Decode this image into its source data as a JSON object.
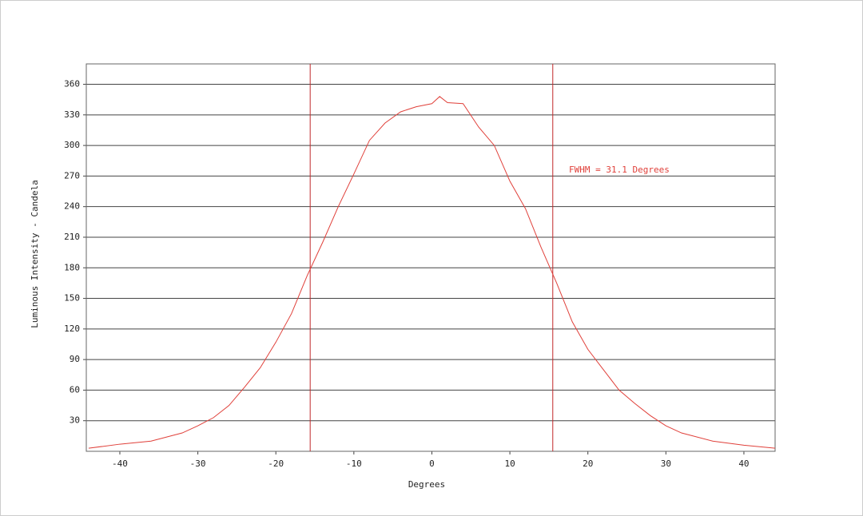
{
  "chart_data": {
    "type": "line",
    "x_label": "Degrees",
    "y_label": "Luminous Intensity - Candela",
    "annotation": "FWHM = 31.1 Degrees",
    "x": [
      -44,
      -40,
      -36,
      -32,
      -30,
      -28,
      -26,
      -24,
      -22,
      -20,
      -18,
      -16,
      -14,
      -12,
      -10,
      -8,
      -6,
      -4,
      -2,
      0,
      1,
      2,
      4,
      6,
      8,
      10,
      12,
      14,
      16,
      18,
      20,
      22,
      24,
      26,
      28,
      30,
      32,
      36,
      40,
      44
    ],
    "series": [
      {
        "color": "#e0403a",
        "values": [
          3,
          7,
          10,
          18,
          25,
          33,
          45,
          63,
          82,
          107,
          135,
          172,
          205,
          240,
          272,
          305,
          322,
          333,
          338,
          341,
          348,
          342,
          341,
          318,
          300,
          265,
          238,
          200,
          165,
          127,
          100,
          80,
          60,
          47,
          35,
          25,
          18,
          10,
          6,
          3
        ]
      }
    ],
    "vlines": [
      -15.6,
      15.5
    ],
    "vline_color": "#c0282a",
    "xlim": [
      -44.3,
      44
    ],
    "ylim": [
      0,
      380
    ],
    "xticks": [
      -40,
      -30,
      -20,
      -10,
      0,
      10,
      20,
      30,
      40
    ],
    "yticks": [
      30,
      60,
      90,
      120,
      150,
      180,
      210,
      240,
      270,
      300,
      330,
      360
    ],
    "grid": true
  }
}
